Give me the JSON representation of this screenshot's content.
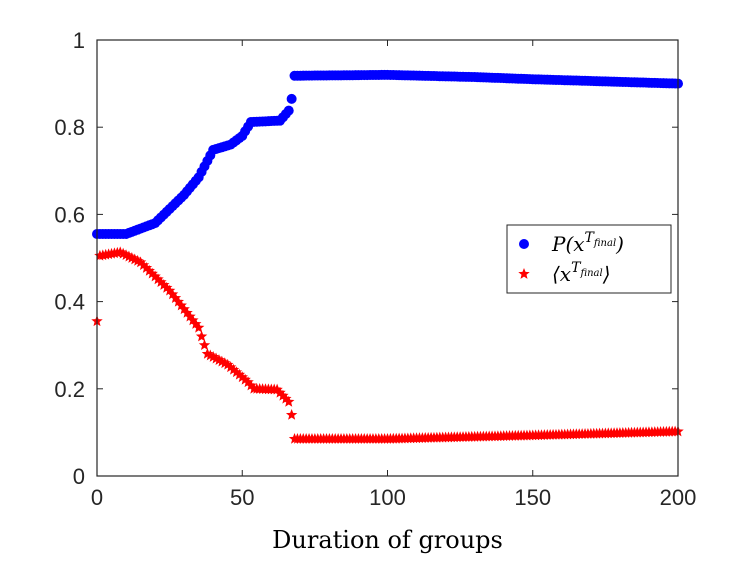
{
  "chart_data": {
    "type": "scatter",
    "title": "",
    "xlabel": "Duration of groups",
    "ylabel": "",
    "xlim": [
      0,
      200
    ],
    "ylim": [
      0,
      1
    ],
    "xticks": [
      "0",
      "50",
      "100",
      "150",
      "200"
    ],
    "yticks": [
      "0",
      "0.2",
      "0.4",
      "0.6",
      "0.8",
      "1"
    ],
    "grid": false,
    "legend_position": "right",
    "series": [
      {
        "name": "P(x^{T_final})",
        "label_main": "P(x",
        "label_sup": "T",
        "label_subsup": "final",
        "label_close": ")",
        "marker": "circle",
        "color": "#0000ff",
        "anchors": [
          [
            0,
            0.555
          ],
          [
            10,
            0.555
          ],
          [
            20,
            0.58
          ],
          [
            30,
            0.645
          ],
          [
            35,
            0.685
          ],
          [
            40,
            0.748
          ],
          [
            46,
            0.76
          ],
          [
            50,
            0.78
          ],
          [
            53,
            0.812
          ],
          [
            63,
            0.815
          ],
          [
            66,
            0.838
          ],
          [
            67,
            0.865
          ],
          [
            68,
            0.918
          ],
          [
            100,
            0.92
          ],
          [
            130,
            0.915
          ],
          [
            150,
            0.91
          ],
          [
            200,
            0.9
          ]
        ]
      },
      {
        "name": "<x^{T_final}>",
        "label_main": "⟨x",
        "label_sup": "T",
        "label_subsup": "final",
        "label_close": "⟩",
        "marker": "star",
        "color": "#ff0000",
        "first_point": [
          0,
          0.355
        ],
        "anchors": [
          [
            1,
            0.505
          ],
          [
            8,
            0.513
          ],
          [
            15,
            0.49
          ],
          [
            25,
            0.425
          ],
          [
            35,
            0.34
          ],
          [
            38,
            0.28
          ],
          [
            45,
            0.255
          ],
          [
            52,
            0.215
          ],
          [
            54,
            0.2
          ],
          [
            62,
            0.198
          ],
          [
            66,
            0.17
          ],
          [
            67,
            0.14
          ],
          [
            68,
            0.085
          ],
          [
            100,
            0.085
          ],
          [
            150,
            0.093
          ],
          [
            200,
            0.102
          ]
        ]
      }
    ]
  }
}
